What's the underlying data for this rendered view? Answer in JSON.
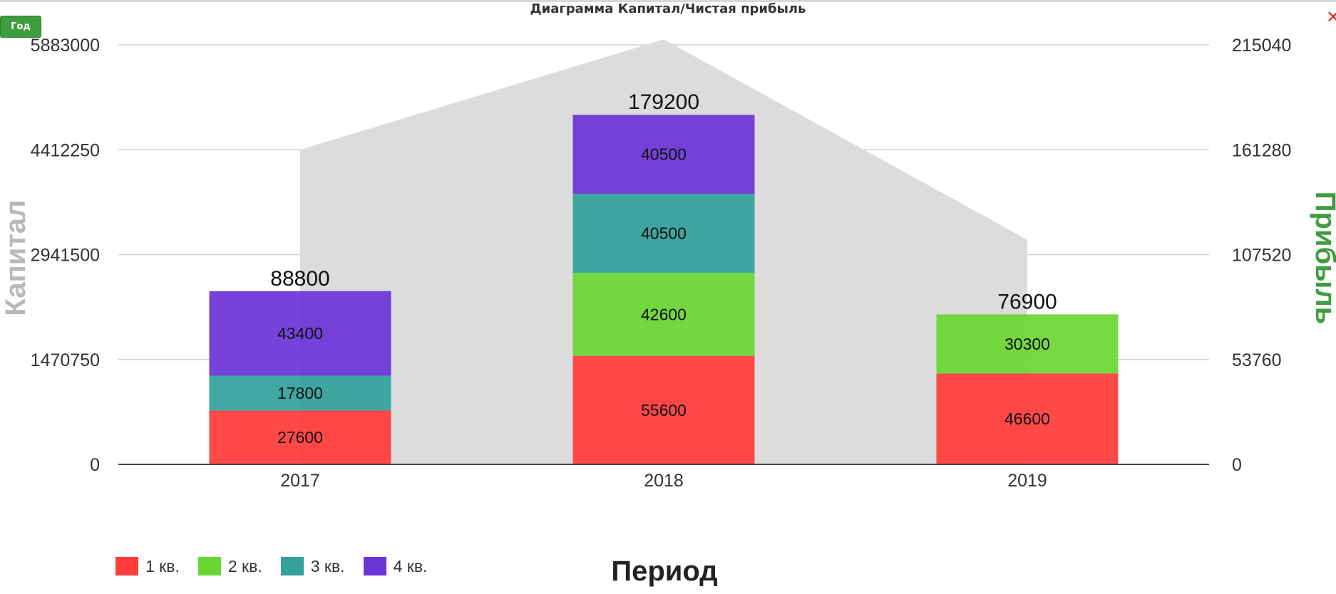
{
  "title": "Диаграмма Капитал/Чистая прибыль",
  "period_button": "Год",
  "close_icon": "close-icon",
  "close_glyph": "✕",
  "colors": {
    "q1": "#ff3b3b",
    "q2": "#6ad634",
    "q3": "#33a09c",
    "q4": "#6a35d6",
    "capital_area": "#dcdcdc",
    "left_axis_title": "#b8b8b8",
    "right_axis_title": "#3f9d3f"
  },
  "chart_data": {
    "type": "bar",
    "stacked": true,
    "categories": [
      "2017",
      "2018",
      "2019"
    ],
    "series": [
      {
        "name": "1 кв.",
        "values": [
          27600,
          55600,
          46600
        ]
      },
      {
        "name": "2 кв.",
        "values": [
          0,
          42600,
          30300
        ]
      },
      {
        "name": "3 кв.",
        "values": [
          17800,
          40500,
          0
        ]
      },
      {
        "name": "4 кв.",
        "values": [
          43400,
          40500,
          0
        ]
      }
    ],
    "totals": [
      88800,
      179200,
      76900
    ],
    "area_series": {
      "values": [
        4412250,
        5960000,
        3150000
      ]
    },
    "xlabel": "Период",
    "ylabel_left": "Капитал",
    "ylabel_right": "Прибыль",
    "ylim_left": [
      0,
      5883000
    ],
    "ylim_right": [
      0,
      215040
    ],
    "yticks_left": [
      "0",
      "1470750",
      "2941500",
      "4412250",
      "5883000"
    ],
    "yticks_right": [
      "0",
      "53760",
      "107520",
      "161280",
      "215040"
    ],
    "grid": true,
    "legend_position": "bottom-left"
  }
}
